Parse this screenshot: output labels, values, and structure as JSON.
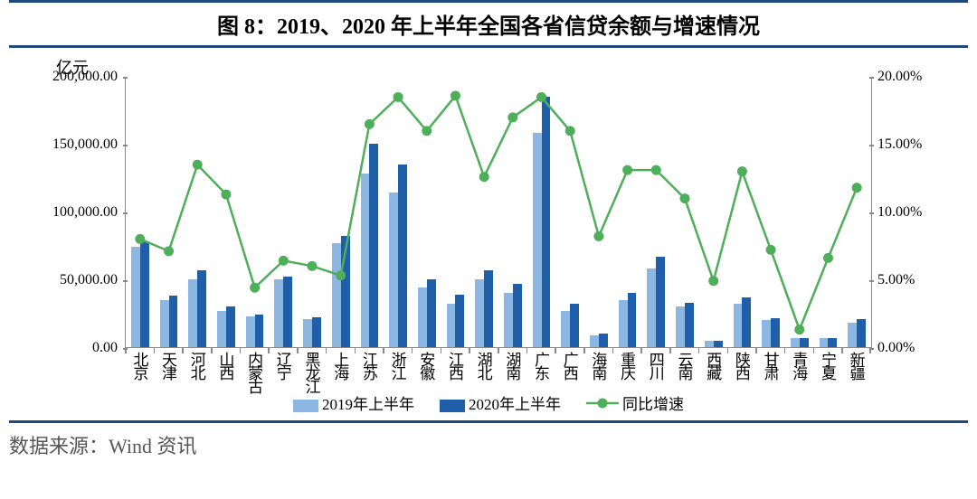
{
  "title": "图 8：2019、2020 年上半年全国各省信贷余额与增速情况",
  "source": "数据来源：Wind 资讯",
  "chart": {
    "type": "bar+line",
    "y_left_unit": "亿元",
    "y_left": {
      "min": 0,
      "max": 200000,
      "ticks": [
        0,
        50000,
        100000,
        150000,
        200000
      ],
      "tick_labels": [
        "0.00",
        "50,000.00",
        "100,000.00",
        "150,000.00",
        "200,000.00"
      ]
    },
    "y_right": {
      "min": 0,
      "max": 20,
      "ticks": [
        0,
        5,
        10,
        15,
        20
      ],
      "tick_labels": [
        "0.00%",
        "5.00%",
        "10.00%",
        "15.00%",
        "20.00%"
      ]
    },
    "categories": [
      "北京",
      "天津",
      "河北",
      "山西",
      "内蒙古",
      "辽宁",
      "黑龙江",
      "上海",
      "江苏",
      "浙江",
      "安徽",
      "江西",
      "湖北",
      "湖南",
      "广东",
      "广西",
      "海南",
      "重庆",
      "四川",
      "云南",
      "西藏",
      "陕西",
      "甘肃",
      "青海",
      "宁夏",
      "新疆"
    ],
    "series": [
      {
        "name": "2019年上半年",
        "color": "#8db7e3",
        "type": "bar",
        "data": [
          74000,
          35000,
          50000,
          27000,
          23000,
          50000,
          21000,
          77000,
          128000,
          114000,
          44000,
          32000,
          50000,
          40000,
          158000,
          27000,
          9000,
          35000,
          58000,
          30000,
          4500,
          32000,
          20000,
          6500,
          6500,
          18000
        ]
      },
      {
        "name": "2020年上半年",
        "color": "#1f5fa9",
        "type": "bar",
        "data": [
          78000,
          38000,
          57000,
          30000,
          24000,
          52000,
          22000,
          82000,
          150000,
          135000,
          50000,
          39000,
          57000,
          47000,
          185000,
          32000,
          9800,
          40000,
          67000,
          33000,
          4800,
          37000,
          21500,
          6700,
          7000,
          21000
        ]
      },
      {
        "name": "同比增速",
        "color": "#4fae5a",
        "type": "line",
        "data": [
          8.0,
          7.1,
          13.5,
          11.3,
          4.4,
          6.4,
          6.0,
          5.3,
          16.5,
          18.5,
          16.0,
          18.6,
          12.6,
          17.0,
          18.5,
          16.0,
          8.2,
          13.1,
          13.1,
          11.0,
          4.9,
          13.0,
          7.2,
          1.3,
          6.6,
          11.8
        ]
      }
    ],
    "background_color": "#ffffff",
    "axis_color": "#888888",
    "rule_color": "#1f497d",
    "title_fontsize": 24,
    "label_fontsize": 17,
    "tick_fontsize": 16,
    "bar_group_width_ratio": 0.62,
    "line_width": 2.5,
    "marker_radius": 5.5
  },
  "legend": {
    "s1": "2019年上半年",
    "s2": "2020年上半年",
    "s3": "同比增速"
  }
}
